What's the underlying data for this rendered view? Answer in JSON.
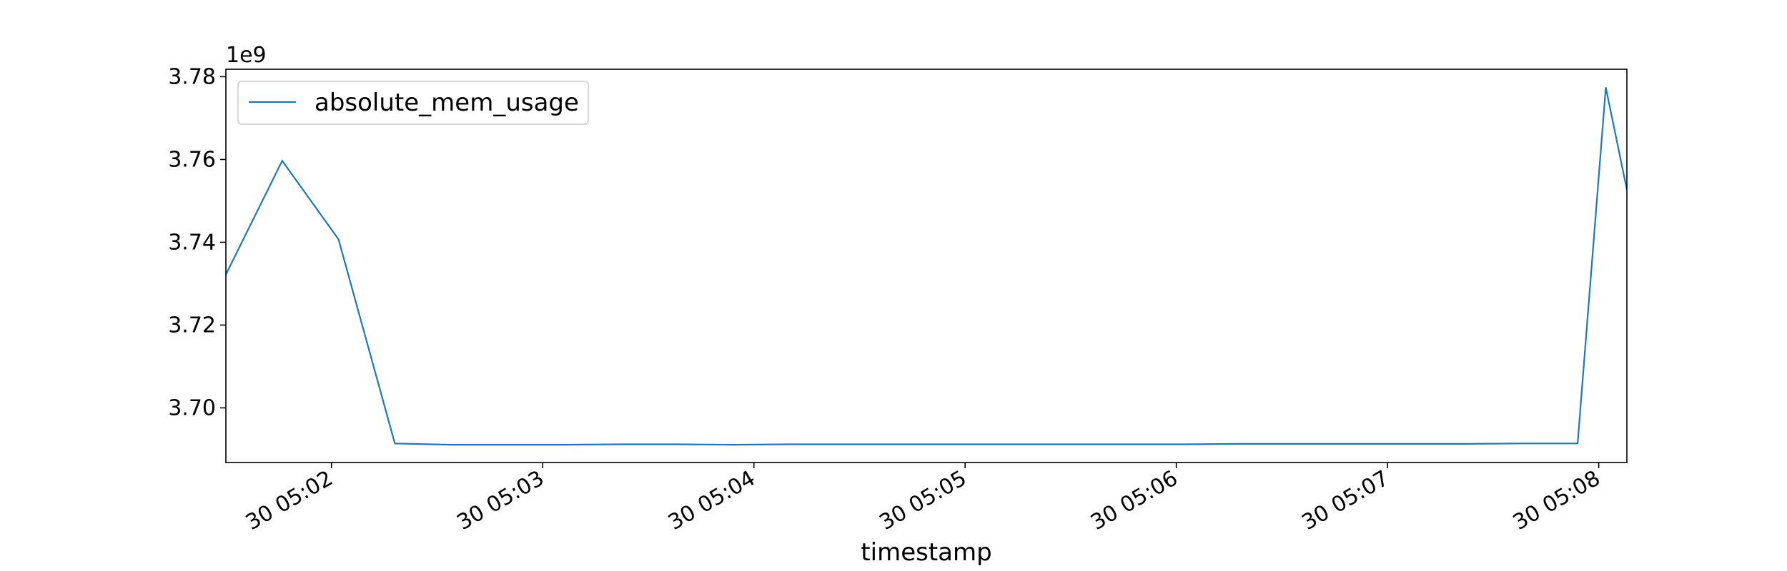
{
  "chart_data": {
    "type": "line",
    "xlabel": "timestamp",
    "y_scale_label": "1e9",
    "x_ticks": [
      "30 05:02",
      "30 05:03",
      "30 05:04",
      "30 05:05",
      "30 05:06",
      "30 05:07",
      "30 05:08"
    ],
    "y_ticks": [
      "3.70",
      "3.72",
      "3.74",
      "3.76",
      "3.78"
    ],
    "x_range_seconds": [
      90,
      488
    ],
    "ylim": [
      3.6868,
      3.7818
    ],
    "legend": {
      "position": "upper-left",
      "entries": [
        "absolute_mem_usage"
      ]
    },
    "grid": false,
    "colors": {
      "series": "#1f77b4",
      "axes": "#000000",
      "background": "#ffffff"
    },
    "series": [
      {
        "name": "absolute_mem_usage",
        "x_seconds": [
          90,
          106,
          122,
          138,
          154,
          170,
          186,
          202,
          218,
          234,
          250,
          266,
          282,
          298,
          314,
          330,
          346,
          362,
          378,
          394,
          410,
          426,
          442,
          458,
          474,
          482,
          488
        ],
        "values": [
          3.7322,
          3.7597,
          3.7407,
          3.6914,
          3.6911,
          3.6911,
          3.6911,
          3.6912,
          3.6912,
          3.6911,
          3.6912,
          3.6912,
          3.6912,
          3.6912,
          3.6912,
          3.6912,
          3.6912,
          3.6912,
          3.6913,
          3.6913,
          3.6913,
          3.6913,
          3.6913,
          3.6914,
          3.6914,
          3.7774,
          3.7527
        ]
      }
    ]
  }
}
